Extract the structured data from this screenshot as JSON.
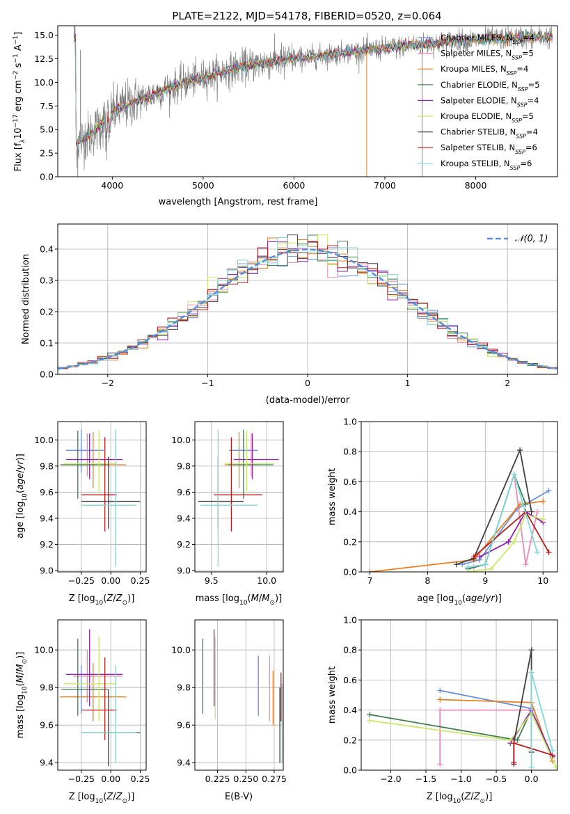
{
  "title": "PLATE=2122, MJD=54178, FIBERID=0520, z=0.064",
  "colors": {
    "Chabrier MILES": "#6a8fd8",
    "Salpeter MILES": "#e98bb4",
    "Kroupa MILES": "#e67e22",
    "Chabrier ELODIE": "#3f7f50",
    "Salpeter ELODIE": "#8e24aa",
    "Kroupa ELODIE": "#c9e86b",
    "Chabrier STELIB": "#404040",
    "Salpeter STELIB": "#b71c1c",
    "Kroupa STELIB": "#80d8d8",
    "data": "#808080",
    "normal": "#5b8bd6"
  },
  "chart_data": [
    {
      "id": "spectrum",
      "type": "line",
      "title": "PLATE=2122, MJD=54178, FIBERID=0520, z=0.064",
      "xlabel": "wavelength [Angstrom, rest frame]",
      "ylabel": "Flux [f_λ 10^-17 erg cm^-2 s^-1 A^-1]",
      "xlim": [
        3400,
        8900
      ],
      "ylim": [
        0,
        16
      ],
      "xticks": [
        "4000",
        "5000",
        "6000",
        "7000",
        "8000"
      ],
      "yticks": [
        "0.0",
        "2.5",
        "5.0",
        "7.5",
        "10.0",
        "12.5",
        "15.0"
      ],
      "legend_position": "right",
      "legend": [
        {
          "name": "Chabrier MILES",
          "nssp": "4"
        },
        {
          "name": "Salpeter MILES",
          "nssp": "5"
        },
        {
          "name": "Kroupa MILES",
          "nssp": "4"
        },
        {
          "name": "Chabrier ELODIE",
          "nssp": "5"
        },
        {
          "name": "Salpeter ELODIE",
          "nssp": "4"
        },
        {
          "name": "Kroupa ELODIE",
          "nssp": "5"
        },
        {
          "name": "Chabrier STELIB",
          "nssp": "4"
        },
        {
          "name": "Salpeter STELIB",
          "nssp": "6"
        },
        {
          "name": "Kroupa STELIB",
          "nssp": "6"
        }
      ],
      "data_anchor_points": [
        [
          3600,
          3.5
        ],
        [
          3800,
          4.8
        ],
        [
          4000,
          6.8
        ],
        [
          4200,
          7.8
        ],
        [
          4500,
          8.9
        ],
        [
          4800,
          10.0
        ],
        [
          5100,
          10.8
        ],
        [
          5400,
          11.6
        ],
        [
          5800,
          12.3
        ],
        [
          6200,
          12.7
        ],
        [
          6600,
          13.2
        ],
        [
          7000,
          13.6
        ],
        [
          7400,
          14.0
        ],
        [
          7800,
          14.4
        ],
        [
          8200,
          14.6
        ],
        [
          8600,
          14.8
        ],
        [
          8800,
          14.8
        ]
      ]
    },
    {
      "id": "residuals",
      "type": "histogram",
      "xlabel": "(data-model)/error",
      "ylabel": "Normed distribution",
      "xlim": [
        -2.5,
        2.5
      ],
      "ylim": [
        0,
        0.48
      ],
      "xticks": [
        "−2",
        "−1",
        "0",
        "1",
        "2"
      ],
      "yticks": [
        "0.0",
        "0.1",
        "0.2",
        "0.3",
        "0.4"
      ],
      "grid": true,
      "legend": "𝒩(0, 1)",
      "legend_position": "top-right",
      "bin_width": 0.1,
      "bin_start": -2.5
    },
    {
      "id": "age_vs_Z",
      "type": "errorbar",
      "xlabel": "Z [log10(Z/Z⊙)]",
      "ylabel": "age [log10(age/yr)]",
      "xlim": [
        -0.45,
        0.3
      ],
      "ylim": [
        8.99,
        10.14
      ],
      "xticks": [
        "−0.25",
        "0.00",
        "0.25"
      ],
      "yticks": [
        "9.0",
        "9.2",
        "9.4",
        "9.6",
        "9.8",
        "10.0"
      ],
      "grid": true
    },
    {
      "id": "age_vs_mass",
      "type": "errorbar",
      "xlabel": "mass [log10(M/M⊙)]",
      "xlim": [
        9.35,
        10.15
      ],
      "ylim": [
        8.99,
        10.14
      ],
      "xticks": [
        "9.5",
        "10.0"
      ],
      "yticks": [
        "9.0",
        "9.2",
        "9.4",
        "9.6",
        "9.8",
        "10.0"
      ],
      "grid": true
    },
    {
      "id": "weight_vs_age",
      "type": "line",
      "xlabel": "age [log10(age/yr)]",
      "ylabel": "mass weight",
      "xlim": [
        6.85,
        10.25
      ],
      "ylim": [
        0,
        1.0
      ],
      "xticks": [
        "7",
        "8",
        "9",
        "10"
      ],
      "yticks": [
        "0.0",
        "0.2",
        "0.4",
        "0.6",
        "0.8",
        "1.0"
      ],
      "grid": true
    },
    {
      "id": "mass_vs_Z",
      "type": "errorbar",
      "xlabel": "Z [log10(Z/Z⊙)]",
      "ylabel": "mass [log10(M/M⊙)]",
      "xlim": [
        -0.45,
        0.3
      ],
      "ylim": [
        9.36,
        10.16
      ],
      "xticks": [
        "−0.25",
        "0.00",
        "0.25"
      ],
      "yticks": [
        "9.4",
        "9.6",
        "9.8",
        "10.0"
      ],
      "grid": true
    },
    {
      "id": "mass_vs_ebv",
      "type": "errorbar",
      "xlabel": "E(B-V)",
      "xlim": [
        0.205,
        0.283
      ],
      "ylim": [
        9.36,
        10.16
      ],
      "xticks": [
        "0.225",
        "0.250",
        "0.275"
      ],
      "yticks": [
        "9.4",
        "9.6",
        "9.8",
        "10.0"
      ],
      "grid": true
    },
    {
      "id": "weight_vs_Z",
      "type": "line",
      "xlabel": "Z [log10(Z/Z⊙)]",
      "ylabel": "mass weight",
      "xlim": [
        -2.42,
        0.37
      ],
      "ylim": [
        0,
        1.0
      ],
      "xticks": [
        "−2.0",
        "−1.5",
        "−1.0",
        "−0.5",
        "0.0"
      ],
      "yticks": [
        "0.0",
        "0.2",
        "0.4",
        "0.6",
        "0.8",
        "1.0"
      ],
      "grid": true
    }
  ],
  "models": [
    {
      "name": "Chabrier MILES",
      "Z": -0.25,
      "Zlo": -0.38,
      "Zhi": -0.06,
      "age": 9.92,
      "agelo": 9.75,
      "agehi": 10.08,
      "mass": 9.79,
      "masslo": 9.66,
      "masshi": 9.92,
      "ebv": 0.261,
      "ebvlo": 9.65,
      "ebvhi": 9.97,
      "ageW": [
        [
          8.6,
          0.05
        ],
        [
          8.9,
          0.08
        ],
        [
          9.55,
          0.42
        ],
        [
          10.1,
          0.54
        ]
      ],
      "ZW": [
        [
          -1.3,
          0.53
        ],
        [
          0.0,
          0.41
        ]
      ]
    },
    {
      "name": "Salpeter MILES",
      "Z": -0.2,
      "Zlo": -0.32,
      "Zhi": 0.1,
      "age": 9.85,
      "agelo": 9.72,
      "agehi": 10.05,
      "mass": 9.86,
      "masslo": 9.72,
      "masshi": 10.0,
      "ebv": 0.271,
      "ebvlo": 9.62,
      "ebvhi": 9.97,
      "ageW": [
        [
          8.8,
          0.03
        ],
        [
          9.0,
          0.05
        ],
        [
          9.5,
          0.65
        ],
        [
          9.7,
          0.05
        ],
        [
          9.9,
          0.4
        ]
      ],
      "ZW": [
        [
          -1.3,
          0.04
        ],
        [
          -1.3,
          0.4
        ],
        [
          0.0,
          0.4
        ],
        [
          0.3,
          0.08
        ]
      ]
    },
    {
      "name": "Kroupa MILES",
      "Z": -0.15,
      "Zlo": -0.43,
      "Zhi": 0.13,
      "age": 9.81,
      "agelo": 9.63,
      "agehi": 10.06,
      "mass": 9.75,
      "masslo": 9.62,
      "masshi": 9.93,
      "ebv": 0.274,
      "ebvlo": 9.6,
      "ebvhi": 9.89,
      "ageW": [
        [
          7.0,
          0.0
        ],
        [
          8.8,
          0.08
        ],
        [
          9.6,
          0.45
        ],
        [
          10.0,
          0.47
        ]
      ],
      "ZW": [
        [
          -1.3,
          0.47
        ],
        [
          0.0,
          0.45
        ],
        [
          0.3,
          0.06
        ]
      ]
    },
    {
      "name": "Chabrier ELODIE",
      "Z": -0.28,
      "Zlo": -0.42,
      "Zhi": -0.02,
      "age": 9.81,
      "agelo": 9.55,
      "agehi": 10.07,
      "mass": 9.79,
      "masslo": 9.65,
      "masshi": 10.06,
      "ebv": 0.212,
      "ebvlo": 9.66,
      "ebvhi": 10.06,
      "ageW": [
        [
          8.7,
          0.02
        ],
        [
          9.0,
          0.05
        ],
        [
          9.5,
          0.65
        ],
        [
          9.7,
          0.45
        ]
      ],
      "ZW": [
        [
          -2.3,
          0.37
        ],
        [
          -0.2,
          0.2
        ],
        [
          0.0,
          0.4
        ]
      ]
    },
    {
      "name": "Salpeter ELODIE",
      "Z": -0.18,
      "Zlo": -0.38,
      "Zhi": 0.1,
      "age": 9.85,
      "agelo": 9.7,
      "agehi": 10.05,
      "mass": 9.87,
      "masslo": 9.7,
      "masshi": 10.11,
      "ebv": 0.222,
      "ebvlo": 9.7,
      "ebvhi": 10.11,
      "ageW": [
        [
          8.9,
          0.1
        ],
        [
          9.4,
          0.2
        ],
        [
          9.7,
          0.4
        ],
        [
          10.0,
          0.33
        ]
      ],
      "ZW": [
        [
          -0.3,
          0.18
        ],
        [
          0.0,
          0.4
        ],
        [
          0.3,
          0.09
        ]
      ]
    },
    {
      "name": "Kroupa ELODIE",
      "Z": -0.1,
      "Zlo": -0.4,
      "Zhi": 0.05,
      "age": 9.82,
      "agelo": 9.6,
      "agehi": 10.07,
      "mass": 9.82,
      "masslo": 9.62,
      "masshi": 10.07,
      "ebv": 0.223,
      "ebvlo": 9.63,
      "ebvhi": 10.07,
      "ageW": [
        [
          8.7,
          0.0
        ],
        [
          9.1,
          0.02
        ],
        [
          9.5,
          0.2
        ],
        [
          9.7,
          0.38
        ],
        [
          10.0,
          0.35
        ]
      ],
      "ZW": [
        [
          -2.3,
          0.33
        ],
        [
          -0.3,
          0.2
        ],
        [
          0.0,
          0.38
        ],
        [
          0.35,
          0.02
        ]
      ]
    },
    {
      "name": "Chabrier STELIB",
      "Z": -0.02,
      "Zlo": -0.25,
      "Zhi": 0.25,
      "age": 9.53,
      "agelo": 9.32,
      "agehi": 9.87,
      "mass": 9.56,
      "masslo": 9.38,
      "masshi": 9.79,
      "ebv": 0.28,
      "ebvlo": 9.4,
      "ebvhi": 9.8,
      "ageW": [
        [
          8.5,
          0.05
        ],
        [
          8.8,
          0.09
        ],
        [
          9.6,
          0.81
        ],
        [
          9.8,
          0.4
        ]
      ],
      "ZW": [
        [
          -0.25,
          0.04
        ],
        [
          -0.25,
          0.18
        ],
        [
          0.0,
          0.8
        ],
        [
          0.0,
          0.12
        ]
      ]
    },
    {
      "name": "Salpeter STELIB",
      "Z": -0.05,
      "Zlo": -0.25,
      "Zhi": 0.05,
      "age": 9.58,
      "agelo": 9.3,
      "agehi": 10.02,
      "mass": 9.68,
      "masslo": 9.52,
      "masshi": 9.96,
      "ebv": 0.281,
      "ebvlo": 9.62,
      "ebvhi": 9.88,
      "ageW": [
        [
          8.8,
          0.1
        ],
        [
          9.7,
          0.4
        ],
        [
          10.1,
          0.13
        ]
      ],
      "ZW": [
        [
          -0.25,
          0.05
        ],
        [
          -0.25,
          0.18
        ],
        [
          0.3,
          0.1
        ]
      ]
    },
    {
      "name": "Kroupa STELIB",
      "Z": 0.04,
      "Zlo": -0.25,
      "Zhi": 0.22,
      "age": 9.5,
      "agelo": 9.03,
      "agehi": 10.08,
      "mass": 9.56,
      "masslo": 9.4,
      "masshi": 9.92,
      "ebv": 0.282,
      "ebvlo": 9.4,
      "ebvhi": 9.82,
      "ageW": [
        [
          8.7,
          0.03
        ],
        [
          9.0,
          0.05
        ],
        [
          9.5,
          0.65
        ],
        [
          9.9,
          0.13
        ]
      ],
      "ZW": [
        [
          0.0,
          0.02
        ],
        [
          0.0,
          0.65
        ],
        [
          0.3,
          0.13
        ]
      ]
    }
  ]
}
